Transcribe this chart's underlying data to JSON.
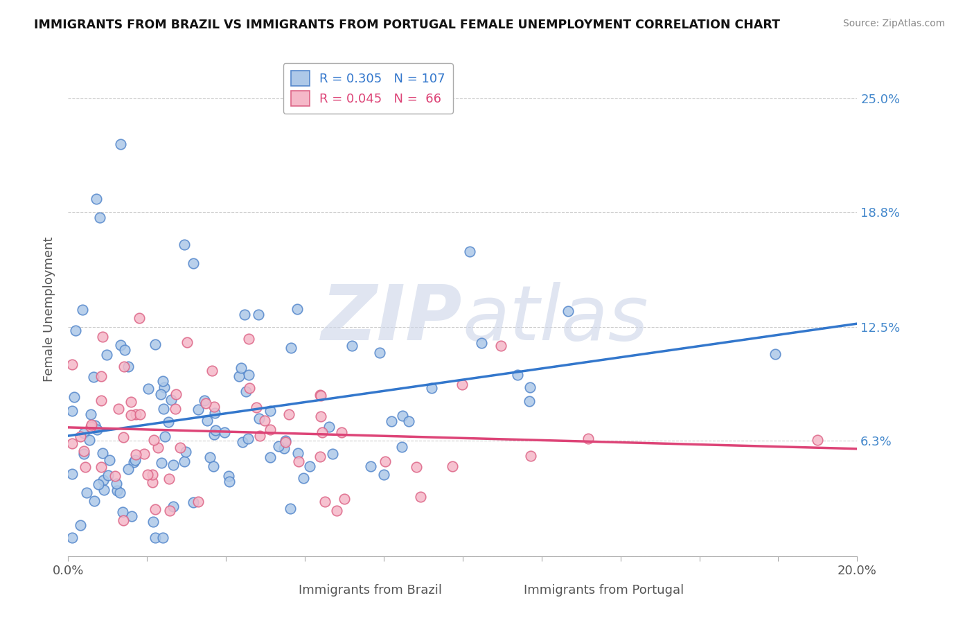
{
  "title": "IMMIGRANTS FROM BRAZIL VS IMMIGRANTS FROM PORTUGAL FEMALE UNEMPLOYMENT CORRELATION CHART",
  "source": "Source: ZipAtlas.com",
  "xlabel_brazil": "Immigrants from Brazil",
  "xlabel_portugal": "Immigrants from Portugal",
  "ylabel": "Female Unemployment",
  "xlim": [
    0.0,
    0.2
  ],
  "ylim": [
    0.0,
    0.27
  ],
  "yticks": [
    0.0,
    0.063,
    0.125,
    0.188,
    0.25
  ],
  "ytick_labels": [
    "",
    "6.3%",
    "12.5%",
    "18.8%",
    "25.0%"
  ],
  "brazil_R": 0.305,
  "brazil_N": 107,
  "portugal_R": 0.045,
  "portugal_N": 66,
  "brazil_color": "#adc8e8",
  "brazil_edge": "#5588cc",
  "portugal_color": "#f5b8c8",
  "portugal_edge": "#dd6688",
  "brazil_line_color": "#3377cc",
  "portugal_line_color": "#dd4477",
  "grid_color": "#cccccc",
  "watermark_color": "#ccd5e8"
}
